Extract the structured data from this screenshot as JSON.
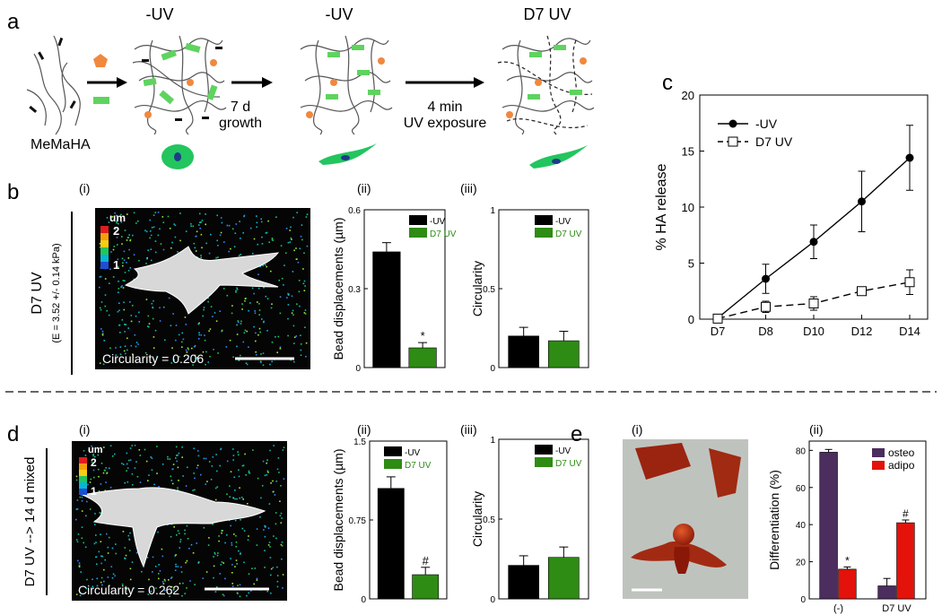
{
  "panel_letters": {
    "a": "a",
    "b": "b",
    "c": "c",
    "d": "d",
    "e": "e"
  },
  "sub_labels": {
    "i": "(i)",
    "ii": "(ii)",
    "iii": "(iii)"
  },
  "schematic": {
    "material_label": "MeMaHA",
    "stage1_title": "-UV",
    "stage2_title": "-UV",
    "stage3_title": "D7 UV",
    "arrow1_line1": "7 d",
    "arrow1_line2": "growth",
    "arrow2_line1": "4 min",
    "arrow2_line2": "UV exposure"
  },
  "panel_b": {
    "side_label": "D7 UV",
    "side_sub": "(E = 3.52 +/- 0.14 kPa)",
    "colorbar_unit": "um",
    "colorbar_max": "2",
    "colorbar_min": "1",
    "circularity_text": "Circularity = 0.206"
  },
  "panel_d": {
    "side_label": "D7 UV --> 14 d mixed",
    "colorbar_unit": "um",
    "colorbar_max": "2",
    "colorbar_min": "1",
    "circularity_text": "Circularity = 0.262"
  },
  "colors": {
    "black_bar": "#000000",
    "green_bar": "#2e8b14",
    "osteo": "#4b2d5e",
    "adipo": "#e3120b",
    "cell_green": "#22c55e",
    "bead_orange": "#f0883e",
    "dashed_divider": "#333333"
  },
  "chart_data": [
    {
      "id": "b_ii",
      "type": "bar",
      "ylabel": "Bead displacements (µm)",
      "yticks": [
        "0",
        "0.3",
        "0.6"
      ],
      "ylim": [
        0,
        0.6
      ],
      "legend": [
        {
          "label": "-UV",
          "color": "#000000"
        },
        {
          "label": "D7 UV",
          "color": "#2e8b14"
        }
      ],
      "categories": [
        "-UV",
        "D7 UV"
      ],
      "values": [
        0.44,
        0.075
      ],
      "errors": [
        0.035,
        0.02
      ],
      "annotations": [
        "",
        "*"
      ]
    },
    {
      "id": "b_iii",
      "type": "bar",
      "ylabel": "Circularity",
      "yticks": [
        "0",
        "0.5",
        "1"
      ],
      "ylim": [
        0,
        1
      ],
      "legend": [
        {
          "label": "-UV",
          "color": "#000000"
        },
        {
          "label": "D7 UV",
          "color": "#2e8b14"
        }
      ],
      "categories": [
        "-UV",
        "D7 UV"
      ],
      "values": [
        0.2,
        0.17
      ],
      "errors": [
        0.055,
        0.06
      ],
      "annotations": [
        "",
        ""
      ]
    },
    {
      "id": "c",
      "type": "line",
      "ylabel": "% HA release",
      "yticks": [
        "0",
        "5",
        "10",
        "15",
        "20"
      ],
      "ylim": [
        0,
        20
      ],
      "categories": [
        "D7",
        "D8",
        "D10",
        "D12",
        "D14"
      ],
      "series": [
        {
          "name": "-UV",
          "values": [
            0.1,
            3.6,
            6.9,
            10.5,
            14.4
          ],
          "errors": [
            0.1,
            1.3,
            1.5,
            2.7,
            2.9
          ]
        },
        {
          "name": "D7 UV",
          "values": [
            0.05,
            1.1,
            1.4,
            2.5,
            3.3
          ],
          "errors": [
            0.1,
            0.5,
            0.6,
            0.3,
            1.1
          ]
        }
      ]
    },
    {
      "id": "d_ii",
      "type": "bar",
      "ylabel": "Bead displacements (µm)",
      "yticks": [
        "0",
        "0.75",
        "1.5"
      ],
      "ylim": [
        0,
        1.5
      ],
      "legend": [
        {
          "label": "-UV",
          "color": "#000000"
        },
        {
          "label": "D7 UV",
          "color": "#2e8b14"
        }
      ],
      "categories": [
        "-UV",
        "D7 UV"
      ],
      "values": [
        1.05,
        0.23
      ],
      "errors": [
        0.11,
        0.07
      ],
      "annotations": [
        "",
        "#"
      ]
    },
    {
      "id": "d_iii",
      "type": "bar",
      "ylabel": "Circularity",
      "yticks": [
        "0",
        "0.5",
        "1"
      ],
      "ylim": [
        0,
        1
      ],
      "legend": [
        {
          "label": "-UV",
          "color": "#000000"
        },
        {
          "label": "D7 UV",
          "color": "#2e8b14"
        }
      ],
      "categories": [
        "-UV",
        "D7 UV"
      ],
      "values": [
        0.21,
        0.26
      ],
      "errors": [
        0.06,
        0.065
      ],
      "annotations": [
        "",
        ""
      ]
    },
    {
      "id": "e_ii",
      "type": "bar",
      "ylabel": "Differentiation (%)",
      "yticks": [
        "0",
        "20",
        "40",
        "60",
        "80"
      ],
      "ylim": [
        0,
        85
      ],
      "categories": [
        "(-)",
        "D7 UV"
      ],
      "series": [
        {
          "name": "osteo",
          "values": [
            79,
            7
          ],
          "errors": [
            1.5,
            4
          ]
        },
        {
          "name": "adipo",
          "values": [
            16,
            41
          ],
          "errors": [
            1.2,
            1.5
          ]
        }
      ],
      "annotations": {
        "adipo": [
          "*",
          "#"
        ]
      }
    }
  ]
}
